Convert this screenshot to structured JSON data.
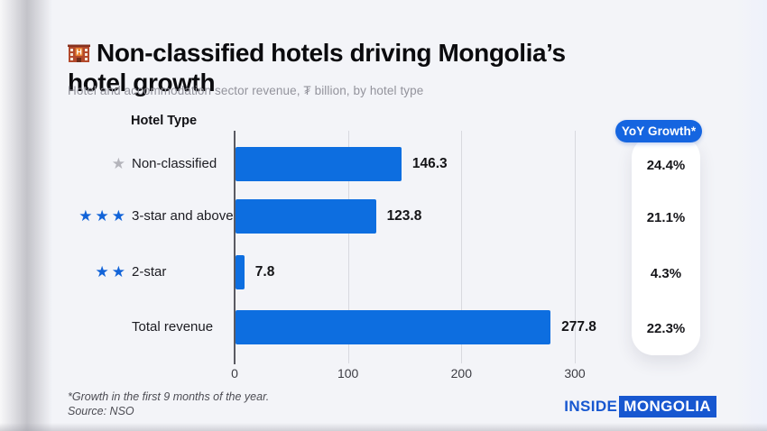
{
  "header": {
    "title_line1": "Non-classified hotels driving Mongolia’s",
    "title_line2": "hotel growth",
    "subtitle": "Hotel and accommodation sector revenue, ₮ billion, by hotel type"
  },
  "chart_data": {
    "type": "bar",
    "orientation": "horizontal",
    "title": "Non-classified hotels driving Mongolia’s hotel growth",
    "column_header": "Hotel Type",
    "categories": [
      "Non-classified",
      "3-star and above",
      "2-star",
      "Total revenue"
    ],
    "values": [
      146.3,
      123.8,
      7.8,
      277.8
    ],
    "value_labels": [
      "146.3",
      "123.8",
      "7.8",
      "277.8"
    ],
    "stars": [
      1,
      3,
      2,
      0
    ],
    "star_colors": [
      "gray",
      "blue",
      "blue",
      "none"
    ],
    "x_ticks": [
      0,
      100,
      200,
      300
    ],
    "xlim": [
      0,
      318
    ],
    "grid": true,
    "legend": "none",
    "bar_color": "#0d6ee0",
    "yoy_column": {
      "header": "YoY Growth*",
      "values": [
        "24.4%",
        "21.1%",
        "4.3%",
        "22.3%"
      ]
    }
  },
  "footer": {
    "footnote_line1": "*Growth in the first 9 months of the year.",
    "footnote_line2": "Source: NSO",
    "logo_part1": "INSIDE",
    "logo_part2": "MONGOLIA"
  },
  "colors": {
    "background": "#f3f4f8",
    "bar_blue": "#0d6ee0",
    "badge_blue": "#1565e0",
    "star_blue": "#1163d8",
    "star_gray": "#b4b4bb",
    "logo_blue": "#1757d0"
  }
}
